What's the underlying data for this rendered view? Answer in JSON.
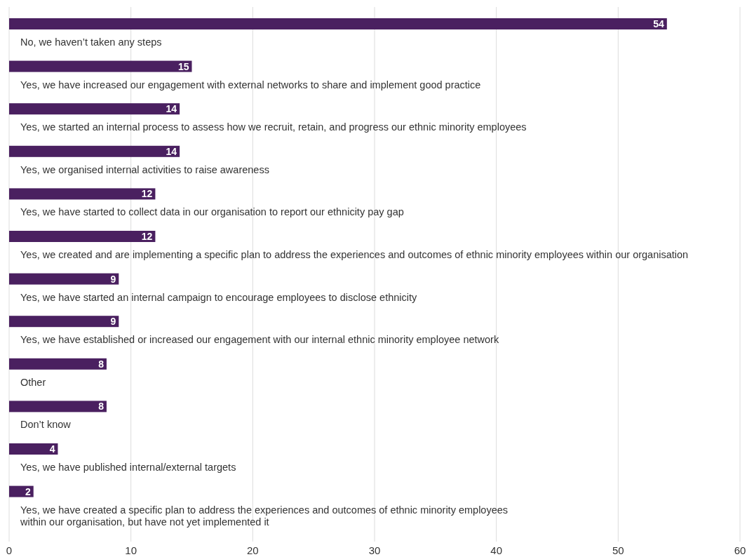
{
  "chart_data": {
    "type": "bar",
    "orientation": "horizontal",
    "categories": [
      "No, we haven’t taken any steps",
      "Yes, we have increased our engagement with external networks to share and implement good practice",
      "Yes, we started an internal process to assess how we recruit, retain, and progress our ethnic minority employees",
      "Yes, we organised internal activities to raise awareness",
      "Yes, we have started to collect data in our organisation to report our ethnicity pay gap",
      "Yes, we created and are implementing a specific plan to address the experiences and outcomes of ethnic minority employees within our organisation",
      "Yes, we have started an internal campaign to encourage employees to disclose ethnicity",
      "Yes, we have established or increased our engagement with our internal ethnic minority employee network",
      "Other",
      "Don’t know",
      "Yes, we have published internal/external targets",
      "Yes, we have created a specific plan to address the experiences and outcomes of ethnic minority employees\nwithin our organisation, but have not yet implemented it"
    ],
    "values": [
      54,
      15,
      14,
      14,
      12,
      12,
      9,
      9,
      8,
      8,
      4,
      2
    ],
    "color": "#4a2060",
    "xlim": [
      0,
      60
    ],
    "xticks": [
      0,
      10,
      20,
      30,
      40,
      50,
      60
    ],
    "grid": "x",
    "data_labels": true
  }
}
